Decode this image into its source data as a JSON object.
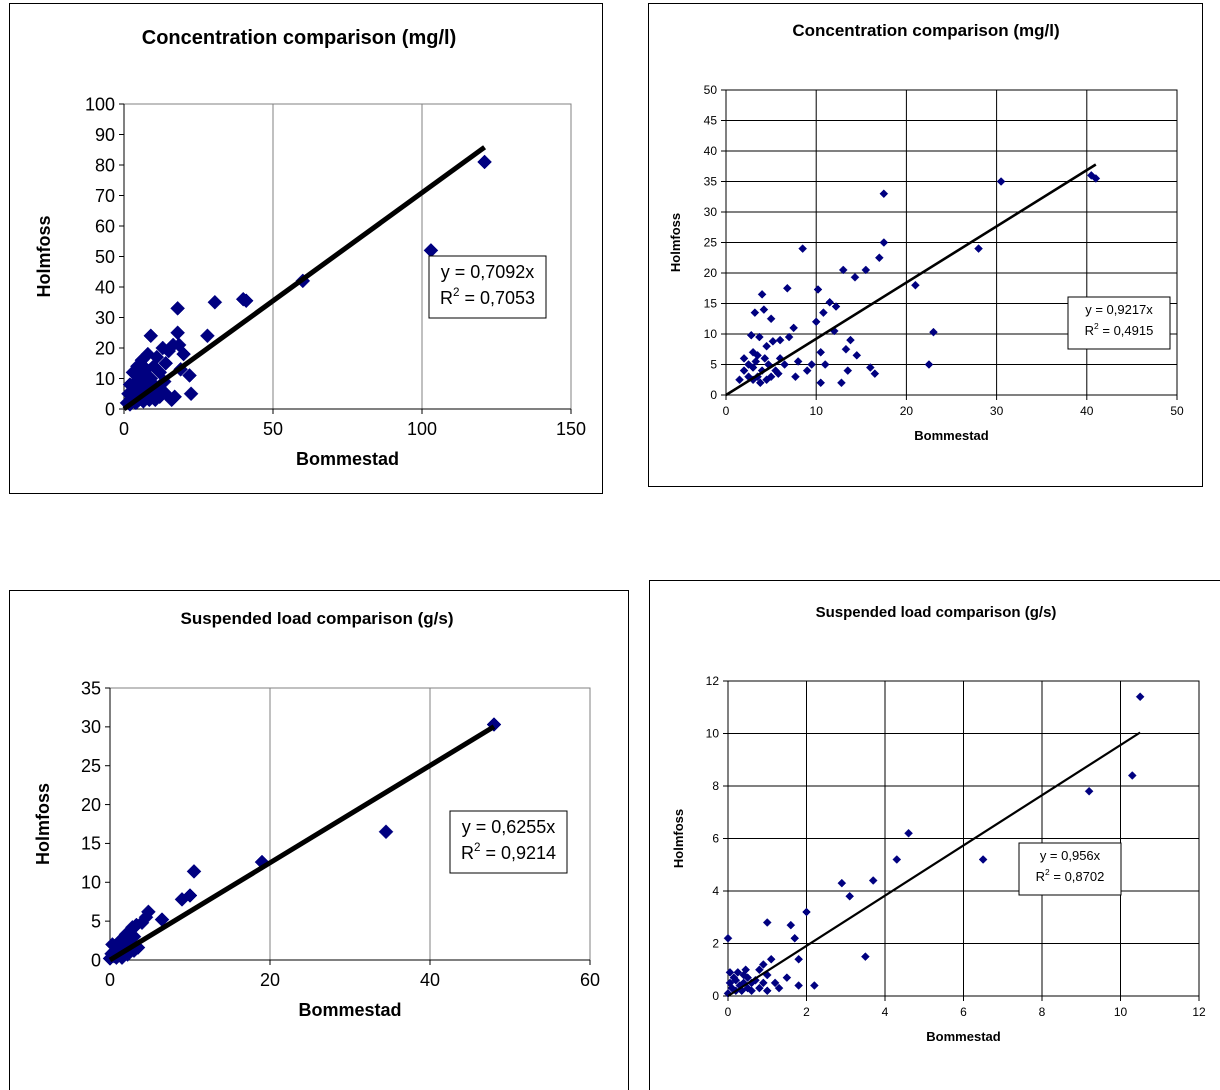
{
  "chart_data": [
    {
      "type": "scatter",
      "title": "Concentration comparison (mg/l)",
      "xlabel": "Bommestad",
      "ylabel": "Holmfoss",
      "xlim": [
        0,
        150
      ],
      "ylim": [
        0,
        100
      ],
      "xticks": [
        0,
        50,
        100,
        150
      ],
      "yticks": [
        0,
        10,
        20,
        30,
        40,
        50,
        60,
        70,
        80,
        90,
        100
      ],
      "grid": "vertical",
      "marker_color": "#000080",
      "trendline": {
        "slope": 0.7092,
        "x_end": 121
      },
      "eq_line1": "y = 0,7092x",
      "eq_line2_prefix": "R",
      "eq_line2_sup": "2",
      "eq_line2_suffix": " = 0,7053",
      "points": [
        [
          1,
          2
        ],
        [
          1.5,
          5
        ],
        [
          2,
          1.5
        ],
        [
          2,
          8
        ],
        [
          2.5,
          3
        ],
        [
          3,
          6
        ],
        [
          3,
          12
        ],
        [
          3.5,
          4
        ],
        [
          4,
          9
        ],
        [
          4,
          2
        ],
        [
          4.5,
          14
        ],
        [
          5,
          7
        ],
        [
          5,
          3
        ],
        [
          5.5,
          11
        ],
        [
          6,
          5
        ],
        [
          6,
          16
        ],
        [
          6.5,
          2.5
        ],
        [
          7,
          9
        ],
        [
          7,
          4
        ],
        [
          7.5,
          13
        ],
        [
          8,
          6
        ],
        [
          8,
          18
        ],
        [
          8.5,
          3
        ],
        [
          9,
          24
        ],
        [
          9,
          10
        ],
        [
          9.5,
          5
        ],
        [
          10,
          8
        ],
        [
          10,
          14
        ],
        [
          10.5,
          3
        ],
        [
          11,
          17
        ],
        [
          11.5,
          7
        ],
        [
          12,
          4
        ],
        [
          12,
          12
        ],
        [
          13,
          20
        ],
        [
          13.5,
          9
        ],
        [
          14,
          5
        ],
        [
          14,
          15
        ],
        [
          15,
          19
        ],
        [
          16,
          3
        ],
        [
          16.5,
          21
        ],
        [
          17,
          4
        ],
        [
          18,
          33
        ],
        [
          18,
          25
        ],
        [
          18.5,
          21
        ],
        [
          19,
          13
        ],
        [
          20,
          18
        ],
        [
          22,
          11
        ],
        [
          22.5,
          5
        ],
        [
          28,
          24
        ],
        [
          30.5,
          35
        ],
        [
          40,
          36
        ],
        [
          41,
          35.5
        ],
        [
          60,
          42
        ],
        [
          103,
          52
        ],
        [
          121,
          81
        ]
      ]
    },
    {
      "type": "scatter",
      "title": "Concentration comparison (mg/l)",
      "xlabel": "Bommestad",
      "ylabel": "Holmfoss",
      "xlim": [
        0,
        50
      ],
      "ylim": [
        0,
        50
      ],
      "xticks": [
        0,
        10,
        20,
        30,
        40,
        50
      ],
      "yticks": [
        0,
        5,
        10,
        15,
        20,
        25,
        30,
        35,
        40,
        45,
        50
      ],
      "grid": "both",
      "marker_color": "#000080",
      "trendline": {
        "slope": 0.9217,
        "x_end": 41
      },
      "eq_line1": "y = 0,9217x",
      "eq_line2_prefix": "R",
      "eq_line2_sup": "2",
      "eq_line2_suffix": " = 0,4915",
      "points": [
        [
          1.5,
          2.5
        ],
        [
          2,
          4
        ],
        [
          2,
          6
        ],
        [
          2.5,
          3
        ],
        [
          2.5,
          5
        ],
        [
          2.8,
          9.8
        ],
        [
          3,
          2.5
        ],
        [
          3,
          4.5
        ],
        [
          3,
          7
        ],
        [
          3.2,
          13.5
        ],
        [
          3.3,
          5.5
        ],
        [
          3.5,
          3
        ],
        [
          3.5,
          6.5
        ],
        [
          3.7,
          9.5
        ],
        [
          3.8,
          2
        ],
        [
          4,
          4
        ],
        [
          4,
          16.5
        ],
        [
          4.2,
          14
        ],
        [
          4.3,
          6
        ],
        [
          4.5,
          2.5
        ],
        [
          4.5,
          8
        ],
        [
          4.7,
          5
        ],
        [
          5,
          3
        ],
        [
          5,
          12.5
        ],
        [
          5.2,
          8.8
        ],
        [
          5.5,
          4
        ],
        [
          5.8,
          3.5
        ],
        [
          6,
          6
        ],
        [
          6,
          9
        ],
        [
          6.5,
          5
        ],
        [
          6.8,
          17.5
        ],
        [
          7,
          9.5
        ],
        [
          7.5,
          11
        ],
        [
          7.7,
          3
        ],
        [
          8,
          5.5
        ],
        [
          8.5,
          24
        ],
        [
          9,
          4
        ],
        [
          9.5,
          5
        ],
        [
          10,
          12
        ],
        [
          10.2,
          17.3
        ],
        [
          10.5,
          2
        ],
        [
          10.5,
          7
        ],
        [
          10.8,
          13.5
        ],
        [
          11,
          5
        ],
        [
          11.5,
          15.2
        ],
        [
          12,
          10.5
        ],
        [
          12.2,
          14.5
        ],
        [
          12.8,
          2
        ],
        [
          13,
          20.5
        ],
        [
          13.3,
          7.5
        ],
        [
          13.5,
          4
        ],
        [
          13.8,
          9
        ],
        [
          14.3,
          19.3
        ],
        [
          14.5,
          6.5
        ],
        [
          15.5,
          20.5
        ],
        [
          16,
          4.5
        ],
        [
          16.5,
          3.5
        ],
        [
          17,
          22.5
        ],
        [
          17.5,
          33
        ],
        [
          17.5,
          25
        ],
        [
          21,
          18
        ],
        [
          22.5,
          5
        ],
        [
          23,
          10.3
        ],
        [
          28,
          24
        ],
        [
          30.5,
          35
        ],
        [
          40.5,
          36
        ],
        [
          41,
          35.5
        ]
      ]
    },
    {
      "type": "scatter",
      "title": "Suspended load comparison (g/s)",
      "xlabel": "Bommestad",
      "ylabel": "Holmfoss",
      "xlim": [
        0,
        60
      ],
      "ylim": [
        0,
        35
      ],
      "xticks": [
        0,
        20,
        40,
        60
      ],
      "yticks": [
        0,
        5,
        10,
        15,
        20,
        25,
        30,
        35
      ],
      "grid": "vertical",
      "marker_color": "#000080",
      "trendline": {
        "slope": 0.6255,
        "x_end": 48
      },
      "eq_line1": "y = 0,6255x",
      "eq_line2_prefix": "R",
      "eq_line2_sup": "2",
      "eq_line2_suffix": " = 0,9214",
      "points": [
        [
          0,
          0.2
        ],
        [
          0.2,
          0.8
        ],
        [
          0.3,
          2
        ],
        [
          0.5,
          0.5
        ],
        [
          0.6,
          1.2
        ],
        [
          0.8,
          0.3
        ],
        [
          1,
          1.8
        ],
        [
          1,
          0.6
        ],
        [
          1.2,
          2.4
        ],
        [
          1.5,
          1
        ],
        [
          1.5,
          0.3
        ],
        [
          1.8,
          2.6
        ],
        [
          2,
          1.5
        ],
        [
          2,
          3.3
        ],
        [
          2.2,
          0.7
        ],
        [
          2.5,
          2.2
        ],
        [
          2.8,
          4.2
        ],
        [
          3,
          1.2
        ],
        [
          3,
          3
        ],
        [
          3.3,
          4.5
        ],
        [
          3.5,
          1.6
        ],
        [
          4,
          4.8
        ],
        [
          4.5,
          5.5
        ],
        [
          4.8,
          6.2
        ],
        [
          6.5,
          5.2
        ],
        [
          9,
          7.8
        ],
        [
          10,
          8.3
        ],
        [
          10.5,
          11.4
        ],
        [
          19,
          12.6
        ],
        [
          34.5,
          16.5
        ],
        [
          48,
          30.3
        ]
      ]
    },
    {
      "type": "scatter",
      "title": "Suspended load comparison (g/s)",
      "xlabel": "Bommestad",
      "ylabel": "Holmfoss",
      "xlim": [
        0,
        12
      ],
      "ylim": [
        0,
        12
      ],
      "xticks": [
        0,
        2,
        4,
        6,
        8,
        10,
        12
      ],
      "yticks": [
        0,
        2,
        4,
        6,
        8,
        10,
        12
      ],
      "grid": "both",
      "marker_color": "#000080",
      "trendline": {
        "slope": 0.956,
        "x_end": 10.5
      },
      "eq_line1": "y = 0,956x",
      "eq_line2_prefix": "R",
      "eq_line2_sup": "2",
      "eq_line2_suffix": " = 0,8702",
      "points": [
        [
          0,
          0.1
        ],
        [
          0,
          2.2
        ],
        [
          0.05,
          0.5
        ],
        [
          0.05,
          0.9
        ],
        [
          0.1,
          0.3
        ],
        [
          0.15,
          0.7
        ],
        [
          0.2,
          0.2
        ],
        [
          0.2,
          0.6
        ],
        [
          0.25,
          0.9
        ],
        [
          0.3,
          0.4
        ],
        [
          0.35,
          0.2
        ],
        [
          0.4,
          0.8
        ],
        [
          0.4,
          0.5
        ],
        [
          0.45,
          1
        ],
        [
          0.5,
          0.3
        ],
        [
          0.5,
          0.7
        ],
        [
          0.6,
          0.5
        ],
        [
          0.6,
          0.2
        ],
        [
          0.7,
          0.6
        ],
        [
          0.8,
          1
        ],
        [
          0.8,
          0.3
        ],
        [
          0.9,
          0.5
        ],
        [
          0.9,
          1.2
        ],
        [
          1,
          0.2
        ],
        [
          1,
          0.8
        ],
        [
          1,
          2.8
        ],
        [
          1.1,
          1.4
        ],
        [
          1.2,
          0.5
        ],
        [
          1.3,
          0.3
        ],
        [
          1.5,
          0.7
        ],
        [
          1.6,
          2.7
        ],
        [
          1.7,
          2.2
        ],
        [
          1.8,
          1.4
        ],
        [
          1.8,
          0.4
        ],
        [
          2,
          3.2
        ],
        [
          2.2,
          0.4
        ],
        [
          2.9,
          4.3
        ],
        [
          3.1,
          3.8
        ],
        [
          3.5,
          1.5
        ],
        [
          3.7,
          4.4
        ],
        [
          4.3,
          5.2
        ],
        [
          4.6,
          6.2
        ],
        [
          6.5,
          5.2
        ],
        [
          9.2,
          7.8
        ],
        [
          10.3,
          8.4
        ],
        [
          10.5,
          11.4
        ]
      ]
    }
  ]
}
